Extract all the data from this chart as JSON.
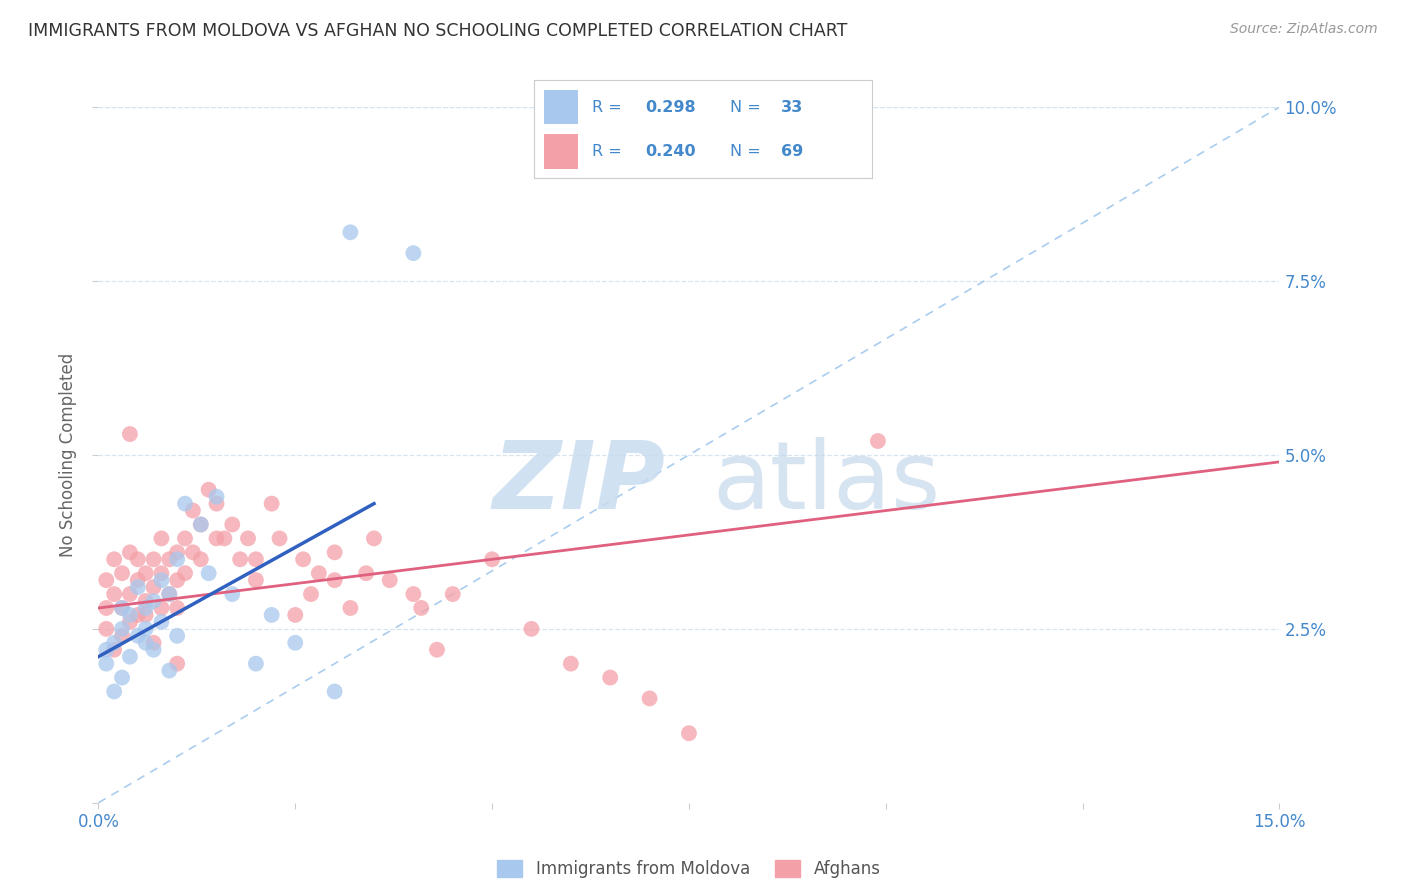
{
  "title": "IMMIGRANTS FROM MOLDOVA VS AFGHAN NO SCHOOLING COMPLETED CORRELATION CHART",
  "source": "Source: ZipAtlas.com",
  "ylabel": "No Schooling Completed",
  "xlim": [
    0.0,
    0.15
  ],
  "ylim": [
    0.0,
    0.1
  ],
  "blue_color": "#A8C8ED",
  "pink_color": "#F4A0A8",
  "blue_line_color": "#3060C0",
  "pink_line_color": "#E06080",
  "dashed_line_color": "#AACCEE",
  "background_color": "#FFFFFF",
  "grid_color": "#D8E4EE",
  "axis_label_color": "#4488CC",
  "title_color": "#333333",
  "legend_text_color": "#4488CC",
  "source_color": "#999999",
  "moldova_x": [
    0.001,
    0.001,
    0.002,
    0.002,
    0.003,
    0.003,
    0.003,
    0.004,
    0.004,
    0.005,
    0.005,
    0.006,
    0.006,
    0.006,
    0.007,
    0.007,
    0.008,
    0.008,
    0.009,
    0.009,
    0.01,
    0.01,
    0.011,
    0.013,
    0.014,
    0.015,
    0.017,
    0.02,
    0.022,
    0.025,
    0.03,
    0.032,
    0.04
  ],
  "moldova_y": [
    0.02,
    0.022,
    0.016,
    0.023,
    0.018,
    0.025,
    0.028,
    0.021,
    0.027,
    0.024,
    0.031,
    0.025,
    0.028,
    0.023,
    0.029,
    0.022,
    0.026,
    0.032,
    0.019,
    0.03,
    0.024,
    0.035,
    0.043,
    0.04,
    0.033,
    0.044,
    0.03,
    0.02,
    0.027,
    0.023,
    0.016,
    0.082,
    0.079
  ],
  "afghan_x": [
    0.001,
    0.001,
    0.001,
    0.002,
    0.002,
    0.002,
    0.003,
    0.003,
    0.003,
    0.004,
    0.004,
    0.004,
    0.005,
    0.005,
    0.005,
    0.006,
    0.006,
    0.006,
    0.007,
    0.007,
    0.008,
    0.008,
    0.008,
    0.009,
    0.009,
    0.01,
    0.01,
    0.01,
    0.011,
    0.011,
    0.012,
    0.012,
    0.013,
    0.013,
    0.014,
    0.015,
    0.015,
    0.016,
    0.017,
    0.018,
    0.019,
    0.02,
    0.02,
    0.022,
    0.023,
    0.025,
    0.026,
    0.027,
    0.028,
    0.03,
    0.03,
    0.032,
    0.034,
    0.035,
    0.037,
    0.04,
    0.041,
    0.043,
    0.045,
    0.05,
    0.055,
    0.06,
    0.065,
    0.07,
    0.075,
    0.004,
    0.007,
    0.01,
    0.099
  ],
  "afghan_y": [
    0.028,
    0.032,
    0.025,
    0.03,
    0.035,
    0.022,
    0.028,
    0.033,
    0.024,
    0.03,
    0.036,
    0.026,
    0.032,
    0.027,
    0.035,
    0.029,
    0.033,
    0.027,
    0.031,
    0.035,
    0.033,
    0.038,
    0.028,
    0.03,
    0.035,
    0.032,
    0.036,
    0.028,
    0.033,
    0.038,
    0.036,
    0.042,
    0.04,
    0.035,
    0.045,
    0.038,
    0.043,
    0.038,
    0.04,
    0.035,
    0.038,
    0.035,
    0.032,
    0.043,
    0.038,
    0.027,
    0.035,
    0.03,
    0.033,
    0.032,
    0.036,
    0.028,
    0.033,
    0.038,
    0.032,
    0.03,
    0.028,
    0.022,
    0.03,
    0.035,
    0.025,
    0.02,
    0.018,
    0.015,
    0.01,
    0.053,
    0.023,
    0.02,
    0.052
  ],
  "mol_line_x": [
    0.0,
    0.035
  ],
  "mol_line_y": [
    0.021,
    0.043
  ],
  "afg_line_x": [
    0.0,
    0.15
  ],
  "afg_line_y": [
    0.028,
    0.049
  ]
}
